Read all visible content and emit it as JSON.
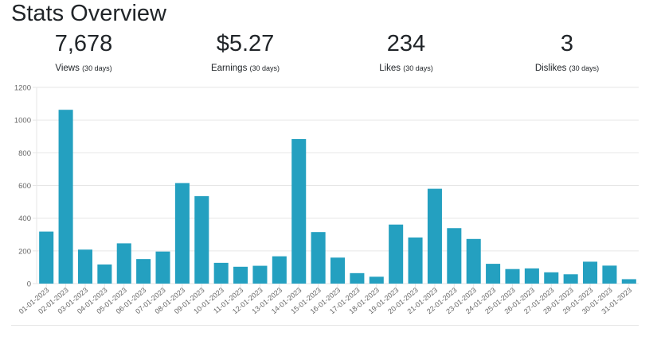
{
  "page": {
    "title": "Stats Overview"
  },
  "stats": [
    {
      "value": "7,678",
      "label": "Views",
      "period": "(30 days)"
    },
    {
      "value": "$5.27",
      "label": "Earnings",
      "period": "(30 days)"
    },
    {
      "value": "234",
      "label": "Likes",
      "period": "(30 days)"
    },
    {
      "value": "3",
      "label": "Dislikes",
      "period": "(30 days)"
    }
  ],
  "chart_data": {
    "type": "bar",
    "title": "",
    "xlabel": "",
    "ylabel": "",
    "ylim": [
      0,
      1200
    ],
    "yticks": [
      0,
      200,
      400,
      600,
      800,
      1000,
      1200
    ],
    "grid": true,
    "bar_color": "#24a0c0",
    "categories": [
      "01-01-2023",
      "02-01-2023",
      "03-01-2023",
      "04-01-2023",
      "05-01-2023",
      "06-01-2023",
      "07-01-2023",
      "08-01-2023",
      "09-01-2023",
      "10-01-2023",
      "11-01-2023",
      "12-01-2023",
      "13-01-2023",
      "14-01-2023",
      "15-01-2023",
      "16-01-2023",
      "17-01-2023",
      "18-01-2023",
      "19-01-2023",
      "20-01-2023",
      "21-01-2023",
      "22-01-2023",
      "23-01-2023",
      "24-01-2023",
      "25-01-2023",
      "26-01-2023",
      "27-01-2023",
      "28-01-2023",
      "29-01-2023",
      "30-01-2023",
      "31-01-2023"
    ],
    "values": [
      318,
      1063,
      208,
      117,
      246,
      150,
      196,
      615,
      535,
      127,
      103,
      109,
      167,
      884,
      315,
      159,
      64,
      42,
      361,
      282,
      580,
      339,
      273,
      121,
      89,
      93,
      69,
      57,
      134,
      110,
      27
    ]
  }
}
